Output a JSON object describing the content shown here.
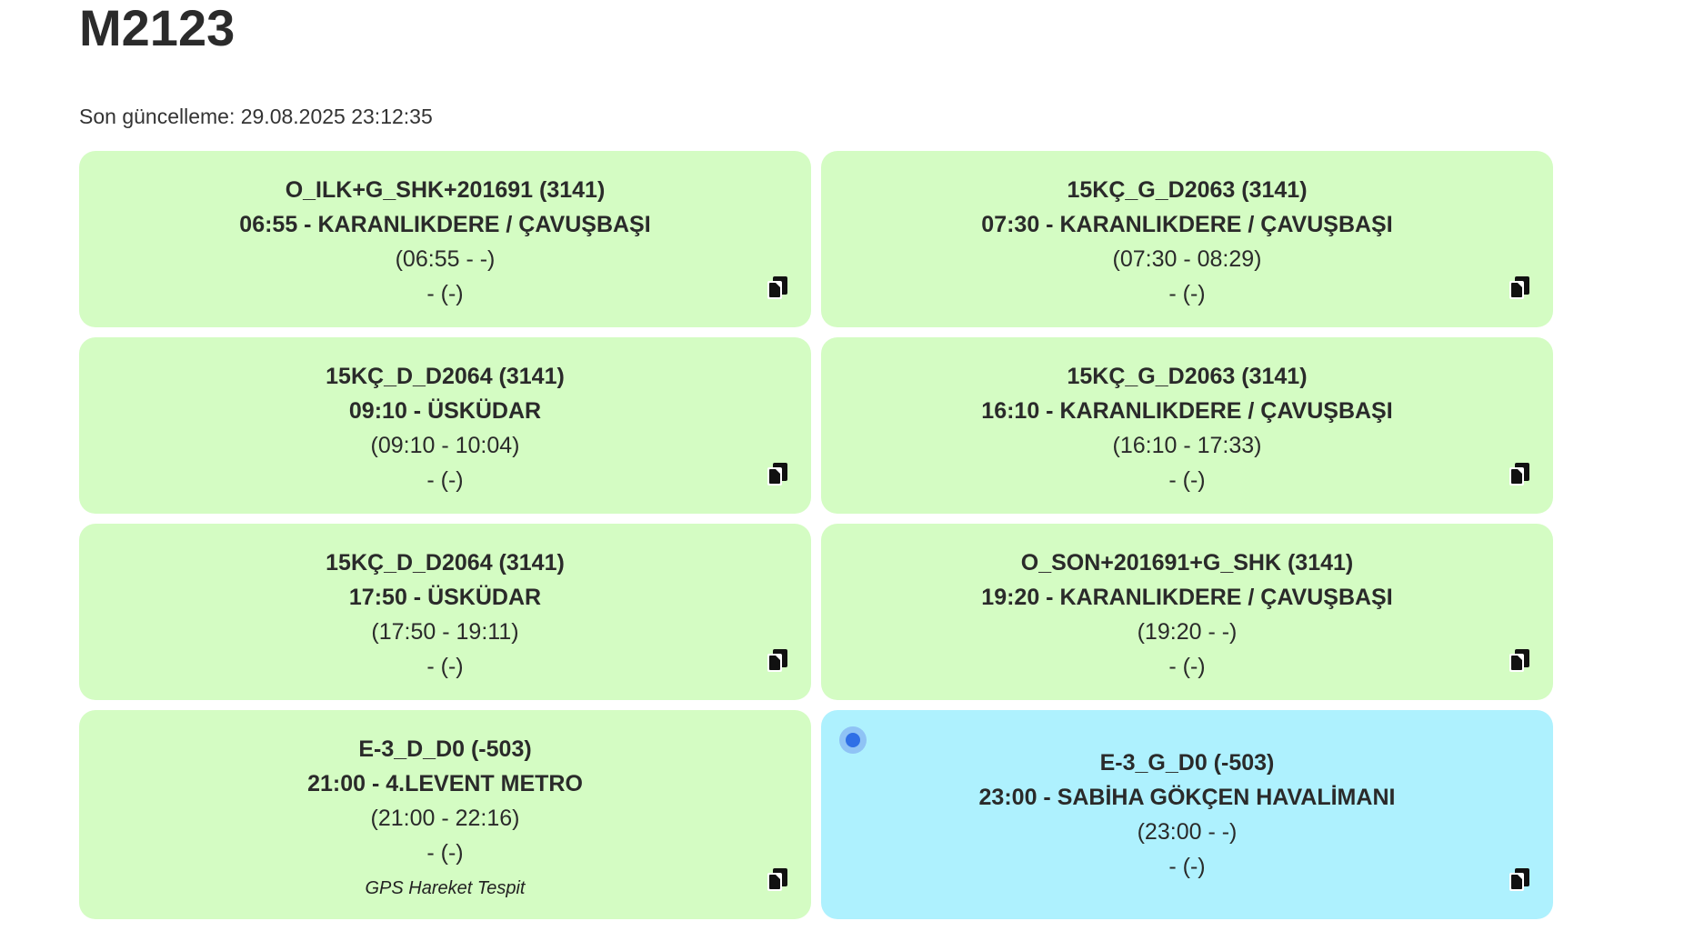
{
  "title": "M2123",
  "last_updated": "Son güncelleme: 29.08.2025 23:12:35",
  "colors": {
    "card_default": "#d4fcc3",
    "card_active": "#aef1fe",
    "status_dot": "#2f6fe6"
  },
  "cards": [
    {
      "route": "O_ILK+G_SHK+201691 (3141)",
      "departure": "06:55 - KARANLIKDERE / ÇAVUŞBAŞI",
      "times": "(06:55 - -)",
      "extra": "- (-)",
      "note": "",
      "active": false
    },
    {
      "route": "15KÇ_G_D2063 (3141)",
      "departure": "07:30 - KARANLIKDERE / ÇAVUŞBAŞI",
      "times": "(07:30 - 08:29)",
      "extra": "- (-)",
      "note": "",
      "active": false
    },
    {
      "route": "15KÇ_D_D2064 (3141)",
      "departure": "09:10 - ÜSKÜDAR",
      "times": "(09:10 - 10:04)",
      "extra": "- (-)",
      "note": "",
      "active": false
    },
    {
      "route": "15KÇ_G_D2063 (3141)",
      "departure": "16:10 - KARANLIKDERE / ÇAVUŞBAŞI",
      "times": "(16:10 - 17:33)",
      "extra": "- (-)",
      "note": "",
      "active": false
    },
    {
      "route": "15KÇ_D_D2064 (3141)",
      "departure": "17:50 - ÜSKÜDAR",
      "times": "(17:50 - 19:11)",
      "extra": "- (-)",
      "note": "",
      "active": false
    },
    {
      "route": "O_SON+201691+G_SHK (3141)",
      "departure": "19:20 - KARANLIKDERE / ÇAVUŞBAŞI",
      "times": "(19:20 - -)",
      "extra": "- (-)",
      "note": "",
      "active": false
    },
    {
      "route": "E-3_D_D0 (-503)",
      "departure": "21:00 - 4.LEVENT METRO",
      "times": "(21:00 - 22:16)",
      "extra": "- (-)",
      "note": "GPS Hareket Tespit",
      "active": false
    },
    {
      "route": "E-3_G_D0 (-503)",
      "departure": "23:00 - SABİHA GÖKÇEN HAVALİMANI",
      "times": "(23:00 - -)",
      "extra": "- (-)",
      "note": "",
      "active": true
    }
  ],
  "icons": {
    "copy": "copy-icon",
    "status": "status-dot-icon"
  }
}
